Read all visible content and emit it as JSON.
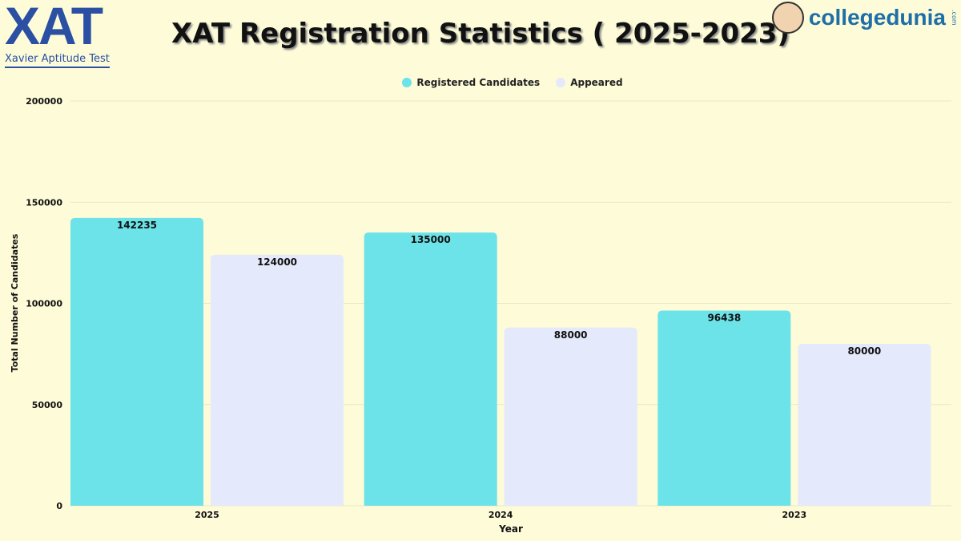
{
  "logo_left": {
    "text": "XAT",
    "subtitle": "Xavier Aptitude Test"
  },
  "logo_right": {
    "text": "collegedunia",
    "suffix": ".com"
  },
  "chart_data": {
    "type": "bar",
    "title": "XAT Registration Statistics ( 2025-2023)",
    "xlabel": "Year",
    "ylabel": "Total Number of Candidates",
    "categories": [
      "2025",
      "2024",
      "2023"
    ],
    "series": [
      {
        "name": "Registered Candidates",
        "color": "#6ce3e8",
        "values": [
          142235,
          135000,
          96438
        ]
      },
      {
        "name": "Appeared",
        "color": "#e4e9fb",
        "values": [
          124000,
          88000,
          80000
        ]
      }
    ],
    "ylim": [
      0,
      200000
    ],
    "yticks": [
      "0",
      "50000",
      "100000",
      "150000",
      "200000"
    ],
    "grid": true,
    "legend": "top-center"
  }
}
